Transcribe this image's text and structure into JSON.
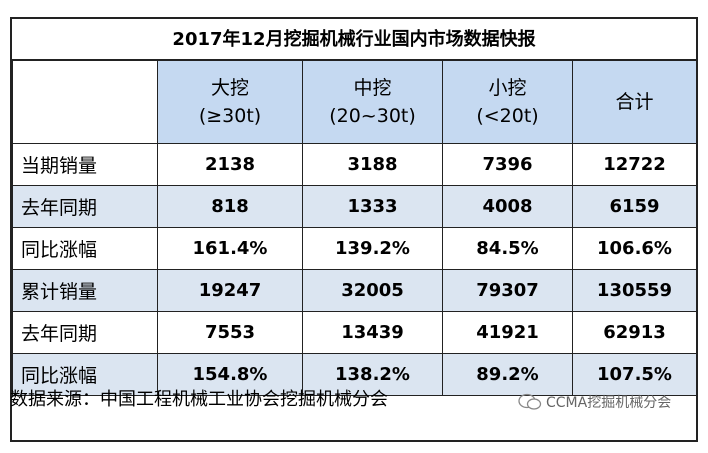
{
  "title": "2017年12月挖掘机械行业国内市场数据快报",
  "table": {
    "header": [
      {
        "name": "大挖",
        "spec": "(≥30t)"
      },
      {
        "name": "中挖",
        "spec": "(20~30t)"
      },
      {
        "name": "小挖",
        "spec": "(<20t)"
      },
      {
        "name": "合计"
      }
    ],
    "rows": [
      [
        "当期销量",
        "2138",
        "3188",
        "7396",
        "12722"
      ],
      [
        "去年同期",
        "818",
        "1333",
        "4008",
        "6159"
      ],
      [
        "同比涨幅",
        "161.4%",
        "139.2%",
        "84.5%",
        "106.6%"
      ],
      [
        "累计销量",
        "19247",
        "32005",
        "79307",
        "130559"
      ],
      [
        "去年同期",
        "7553",
        "13439",
        "41921",
        "62913"
      ],
      [
        "同比涨幅",
        "154.8%",
        "138.2%",
        "89.2%",
        "107.5%"
      ]
    ]
  },
  "footer": {
    "source": "数据来源：中国工程机械工业协会挖掘机械分会",
    "watermark": "CCMA挖掘机械分会"
  }
}
